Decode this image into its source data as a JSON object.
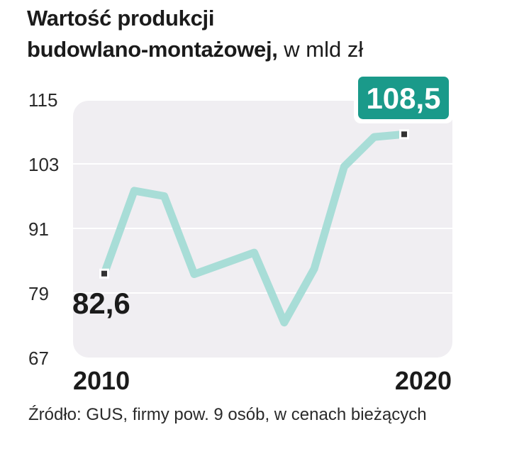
{
  "title": {
    "line1": "Wartość produkcji",
    "line2": "budowlano-montażowej,",
    "unit": "w mld zł"
  },
  "chart_data": {
    "type": "line",
    "x": [
      2010,
      2011,
      2012,
      2013,
      2014,
      2015,
      2016,
      2017,
      2018,
      2019,
      2020
    ],
    "values": [
      82.6,
      98.0,
      97.0,
      82.5,
      84.5,
      86.5,
      73.5,
      83.5,
      102.5,
      108.0,
      108.5
    ],
    "yticks": [
      115,
      103,
      91,
      79,
      67
    ],
    "ylim": [
      67,
      115
    ],
    "xtick_labels": [
      "2010",
      "2020"
    ],
    "start_label": "82,6",
    "end_label": "108,5",
    "grid": true,
    "colors": {
      "line": "#a8ddd7",
      "badge": "#1a9a8a",
      "plot_bg": "#f0eef2",
      "grid": "#ffffff",
      "marker": "#333333"
    }
  },
  "footnote": "Źródło: GUS, firmy pow. 9 osób, w cenach bieżących"
}
